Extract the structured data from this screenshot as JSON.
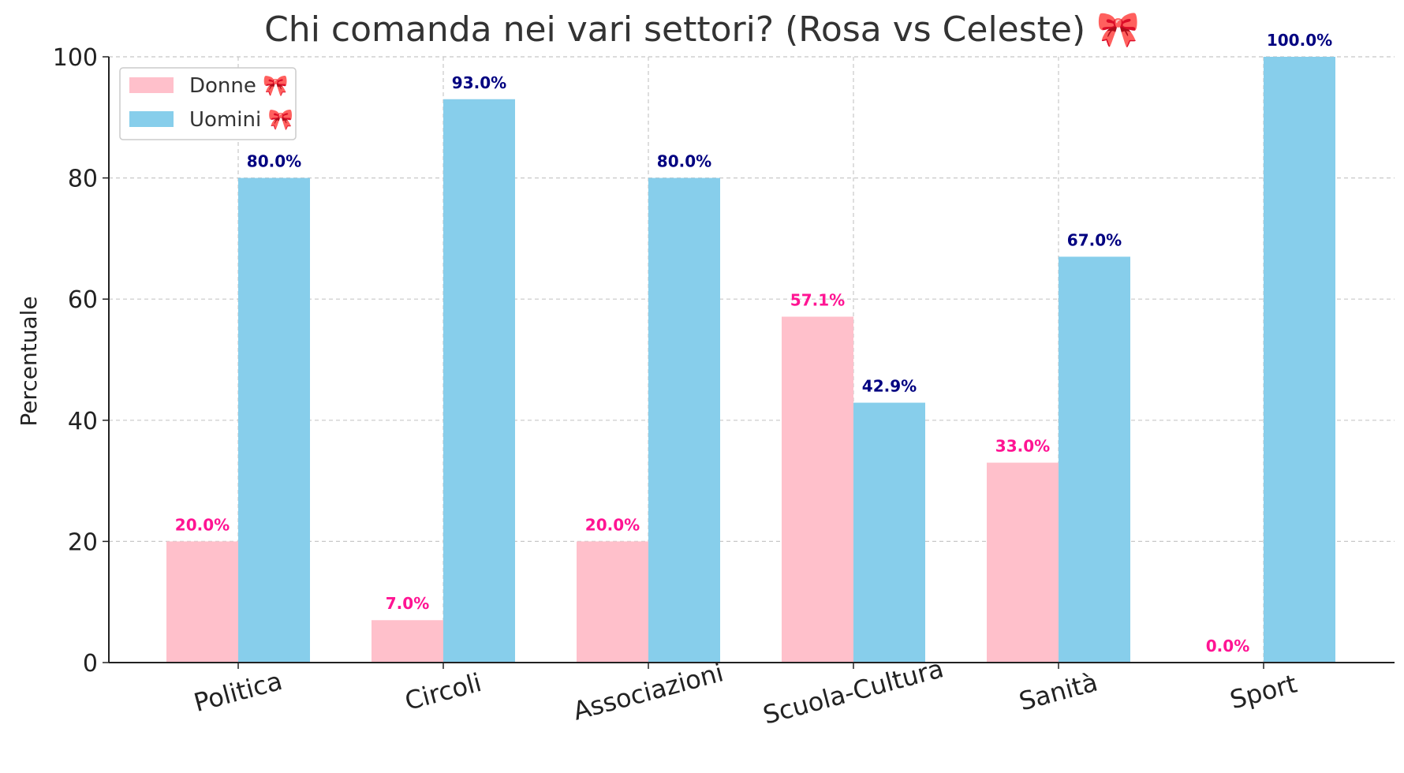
{
  "chart_data": {
    "type": "bar",
    "title": "Chi comanda nei vari settori? (Rosa vs Celeste) 🎀",
    "xlabel": "",
    "ylabel": "Percentuale",
    "ylim": [
      0,
      100
    ],
    "yticks": [
      0,
      20,
      40,
      60,
      80,
      100
    ],
    "grid": true,
    "legend_position": "top-left",
    "categories": [
      "Politica",
      "Circoli",
      "Associazioni",
      "Scuola-Cultura",
      "Sanità",
      "Sport"
    ],
    "series": [
      {
        "name": "Donne 🎀",
        "color": "#ffc0cb",
        "label_color": "#ff1493",
        "values": [
          20.0,
          7.0,
          20.0,
          57.1,
          33.0,
          0.0
        ],
        "labels": [
          "20.0%",
          "7.0%",
          "20.0%",
          "57.1%",
          "33.0%",
          "0.0%"
        ]
      },
      {
        "name": "Uomini 🎀",
        "color": "#87ceeb",
        "label_color": "#000080",
        "values": [
          80.0,
          93.0,
          80.0,
          42.9,
          67.0,
          100.0
        ],
        "labels": [
          "80.0%",
          "93.0%",
          "80.0%",
          "42.9%",
          "67.0%",
          "100.0%"
        ]
      }
    ]
  }
}
